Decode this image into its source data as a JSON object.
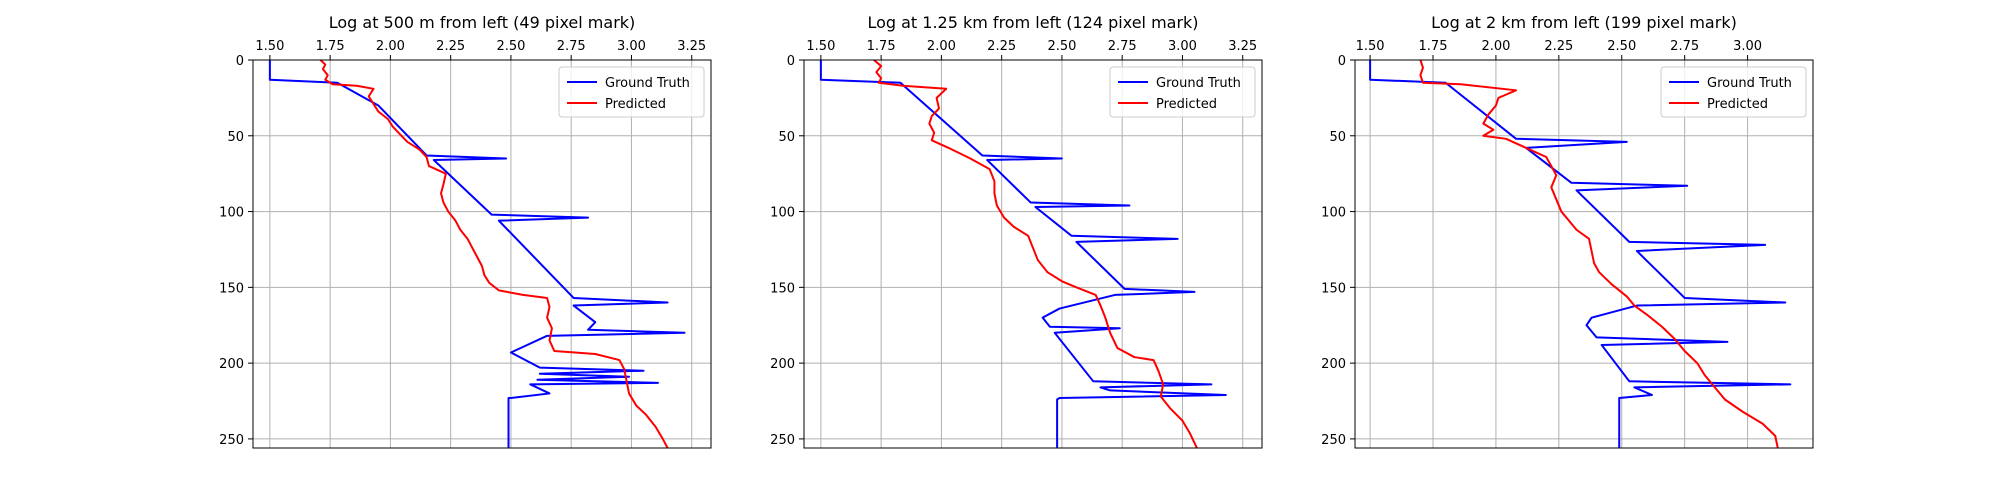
{
  "figure": {
    "panels": [
      {
        "title": "Log at 500 m from left (49 pixel mark)",
        "xticks": [
          "1.50",
          "1.75",
          "2.00",
          "2.25",
          "2.50",
          "2.75",
          "3.00",
          "3.25"
        ]
      },
      {
        "title": "Log at 1.25 km from left (124 pixel mark)",
        "xticks": [
          "1.50",
          "1.75",
          "2.00",
          "2.25",
          "2.50",
          "2.75",
          "3.00",
          "3.25"
        ]
      },
      {
        "title": "Log at 2 km from left (199 pixel mark)",
        "xticks": [
          "1.50",
          "1.75",
          "2.00",
          "2.25",
          "2.50",
          "2.75",
          "3.00"
        ]
      }
    ],
    "yticks": [
      "0",
      "50",
      "100",
      "150",
      "200",
      "250"
    ],
    "legend": {
      "series_0": "Ground Truth",
      "series_1": "Predicted"
    },
    "colors": {
      "ground_truth": "#0000ff",
      "predicted": "#ff0000",
      "grid": "#b0b0b0"
    }
  },
  "chart_data": [
    {
      "type": "line",
      "title": "Log at 500 m from left (49 pixel mark)",
      "xlabel": "",
      "ylabel": "",
      "xlim": [
        1.43,
        3.33
      ],
      "ylim": [
        256,
        0
      ],
      "y_inverted": true,
      "grid": true,
      "legend_position": "top-right",
      "series": [
        {
          "name": "Ground Truth",
          "color": "#0000ff",
          "points": [
            [
              1.5,
              0
            ],
            [
              1.5,
              13
            ],
            [
              1.78,
              15
            ],
            [
              1.95,
              30
            ],
            [
              2.15,
              63
            ],
            [
              2.48,
              65
            ],
            [
              2.18,
              66
            ],
            [
              2.42,
              102
            ],
            [
              2.82,
              104
            ],
            [
              2.45,
              106
            ],
            [
              2.76,
              157
            ],
            [
              3.15,
              160
            ],
            [
              2.76,
              162
            ],
            [
              2.85,
              173
            ],
            [
              2.82,
              178
            ],
            [
              3.22,
              180
            ],
            [
              2.65,
              182
            ],
            [
              2.5,
              193
            ],
            [
              2.62,
              203
            ],
            [
              3.05,
              205
            ],
            [
              2.62,
              207
            ],
            [
              2.99,
              209
            ],
            [
              2.61,
              211
            ],
            [
              3.11,
              213
            ],
            [
              2.58,
              214
            ],
            [
              2.66,
              220
            ],
            [
              2.5,
              223
            ],
            [
              2.49,
              223
            ],
            [
              2.49,
              256
            ]
          ]
        },
        {
          "name": "Predicted",
          "color": "#ff0000",
          "points": [
            [
              1.71,
              0
            ],
            [
              1.73,
              3
            ],
            [
              1.72,
              6
            ],
            [
              1.74,
              10
            ],
            [
              1.73,
              13
            ],
            [
              1.76,
              16
            ],
            [
              1.86,
              17
            ],
            [
              1.93,
              19
            ],
            [
              1.91,
              24
            ],
            [
              1.93,
              29
            ],
            [
              1.95,
              34
            ],
            [
              1.99,
              39
            ],
            [
              2.01,
              44
            ],
            [
              2.04,
              49
            ],
            [
              2.07,
              54
            ],
            [
              2.12,
              59
            ],
            [
              2.15,
              64
            ],
            [
              2.16,
              70
            ],
            [
              2.23,
              75
            ],
            [
              2.22,
              82
            ],
            [
              2.21,
              88
            ],
            [
              2.22,
              94
            ],
            [
              2.24,
              100
            ],
            [
              2.27,
              106
            ],
            [
              2.29,
              112
            ],
            [
              2.32,
              118
            ],
            [
              2.34,
              124
            ],
            [
              2.36,
              130
            ],
            [
              2.38,
              136
            ],
            [
              2.39,
              142
            ],
            [
              2.41,
              147
            ],
            [
              2.45,
              152
            ],
            [
              2.55,
              155
            ],
            [
              2.65,
              157
            ],
            [
              2.66,
              163
            ],
            [
              2.65,
              170
            ],
            [
              2.67,
              177
            ],
            [
              2.66,
              185
            ],
            [
              2.68,
              192
            ],
            [
              2.85,
              194
            ],
            [
              2.95,
              198
            ],
            [
              2.97,
              204
            ],
            [
              2.98,
              212
            ],
            [
              2.99,
              220
            ],
            [
              3.02,
              228
            ],
            [
              3.06,
              234
            ],
            [
              3.1,
              242
            ],
            [
              3.13,
              250
            ],
            [
              3.15,
              256
            ]
          ]
        }
      ]
    },
    {
      "type": "line",
      "title": "Log at 1.25 km from left (124 pixel mark)",
      "xlabel": "",
      "ylabel": "",
      "xlim": [
        1.43,
        3.33
      ],
      "ylim": [
        256,
        0
      ],
      "y_inverted": true,
      "grid": true,
      "legend_position": "top-right",
      "series": [
        {
          "name": "Ground Truth",
          "color": "#0000ff",
          "points": [
            [
              1.5,
              0
            ],
            [
              1.5,
              13
            ],
            [
              1.83,
              15
            ],
            [
              2.17,
              63
            ],
            [
              2.5,
              65
            ],
            [
              2.19,
              66
            ],
            [
              2.37,
              94
            ],
            [
              2.78,
              96
            ],
            [
              2.39,
              97
            ],
            [
              2.54,
              116
            ],
            [
              2.98,
              118
            ],
            [
              2.56,
              120
            ],
            [
              2.76,
              151
            ],
            [
              3.05,
              153
            ],
            [
              2.72,
              155
            ],
            [
              2.49,
              164
            ],
            [
              2.42,
              170
            ],
            [
              2.45,
              176
            ],
            [
              2.74,
              177
            ],
            [
              2.47,
              180
            ],
            [
              2.63,
              212
            ],
            [
              3.12,
              214
            ],
            [
              2.66,
              216
            ],
            [
              2.7,
              218
            ],
            [
              3.18,
              221
            ],
            [
              2.49,
              223
            ],
            [
              2.48,
              224
            ],
            [
              2.48,
              256
            ]
          ]
        },
        {
          "name": "Predicted",
          "color": "#ff0000",
          "points": [
            [
              1.72,
              0
            ],
            [
              1.75,
              4
            ],
            [
              1.73,
              8
            ],
            [
              1.75,
              12
            ],
            [
              1.74,
              15
            ],
            [
              1.84,
              17
            ],
            [
              2.02,
              19
            ],
            [
              1.98,
              25
            ],
            [
              1.99,
              32
            ],
            [
              1.96,
              37
            ],
            [
              1.95,
              42
            ],
            [
              1.97,
              48
            ],
            [
              1.96,
              53
            ],
            [
              2.03,
              58
            ],
            [
              2.12,
              65
            ],
            [
              2.2,
              72
            ],
            [
              2.22,
              80
            ],
            [
              2.22,
              88
            ],
            [
              2.23,
              96
            ],
            [
              2.26,
              104
            ],
            [
              2.3,
              110
            ],
            [
              2.36,
              116
            ],
            [
              2.38,
              124
            ],
            [
              2.4,
              132
            ],
            [
              2.44,
              140
            ],
            [
              2.5,
              146
            ],
            [
              2.56,
              150
            ],
            [
              2.64,
              155
            ],
            [
              2.66,
              162
            ],
            [
              2.68,
              170
            ],
            [
              2.7,
              180
            ],
            [
              2.73,
              190
            ],
            [
              2.8,
              196
            ],
            [
              2.88,
              198
            ],
            [
              2.9,
              205
            ],
            [
              2.92,
              214
            ],
            [
              2.91,
              222
            ],
            [
              2.95,
              230
            ],
            [
              3.0,
              238
            ],
            [
              3.03,
              246
            ],
            [
              3.06,
              256
            ]
          ]
        }
      ]
    },
    {
      "type": "line",
      "title": "Log at 2 km from left (199 pixel mark)",
      "xlabel": "",
      "ylabel": "",
      "xlim": [
        1.44,
        3.26
      ],
      "ylim": [
        256,
        0
      ],
      "y_inverted": true,
      "grid": true,
      "legend_position": "top-right",
      "series": [
        {
          "name": "Ground Truth",
          "color": "#0000ff",
          "points": [
            [
              1.5,
              0
            ],
            [
              1.5,
              13
            ],
            [
              1.8,
              15
            ],
            [
              2.08,
              52
            ],
            [
              2.52,
              54
            ],
            [
              2.12,
              58
            ],
            [
              2.3,
              81
            ],
            [
              2.76,
              83
            ],
            [
              2.32,
              86
            ],
            [
              2.53,
              120
            ],
            [
              3.07,
              122
            ],
            [
              2.56,
              126
            ],
            [
              2.75,
              157
            ],
            [
              3.15,
              160
            ],
            [
              2.56,
              162
            ],
            [
              2.38,
              170
            ],
            [
              2.36,
              175
            ],
            [
              2.4,
              183
            ],
            [
              2.92,
              186
            ],
            [
              2.42,
              188
            ],
            [
              2.53,
              212
            ],
            [
              3.17,
              214
            ],
            [
              2.55,
              216
            ],
            [
              2.62,
              221
            ],
            [
              2.49,
              223
            ],
            [
              2.49,
              256
            ]
          ]
        },
        {
          "name": "Predicted",
          "color": "#ff0000",
          "points": [
            [
              1.7,
              0
            ],
            [
              1.71,
              5
            ],
            [
              1.7,
              10
            ],
            [
              1.71,
              15
            ],
            [
              1.86,
              16
            ],
            [
              2.08,
              20
            ],
            [
              2.01,
              25
            ],
            [
              2.0,
              30
            ],
            [
              1.97,
              36
            ],
            [
              1.95,
              42
            ],
            [
              1.99,
              46
            ],
            [
              1.95,
              50
            ],
            [
              2.04,
              52
            ],
            [
              2.12,
              58
            ],
            [
              2.2,
              64
            ],
            [
              2.22,
              70
            ],
            [
              2.24,
              76
            ],
            [
              2.22,
              84
            ],
            [
              2.24,
              92
            ],
            [
              2.26,
              100
            ],
            [
              2.29,
              106
            ],
            [
              2.32,
              112
            ],
            [
              2.37,
              118
            ],
            [
              2.38,
              126
            ],
            [
              2.39,
              134
            ],
            [
              2.41,
              140
            ],
            [
              2.46,
              148
            ],
            [
              2.52,
              156
            ],
            [
              2.55,
              162
            ],
            [
              2.6,
              168
            ],
            [
              2.66,
              176
            ],
            [
              2.71,
              184
            ],
            [
              2.75,
              192
            ],
            [
              2.8,
              200
            ],
            [
              2.83,
              208
            ],
            [
              2.86,
              214
            ],
            [
              2.91,
              224
            ],
            [
              2.98,
              232
            ],
            [
              3.06,
              240
            ],
            [
              3.11,
              248
            ],
            [
              3.12,
              256
            ]
          ]
        }
      ]
    }
  ]
}
